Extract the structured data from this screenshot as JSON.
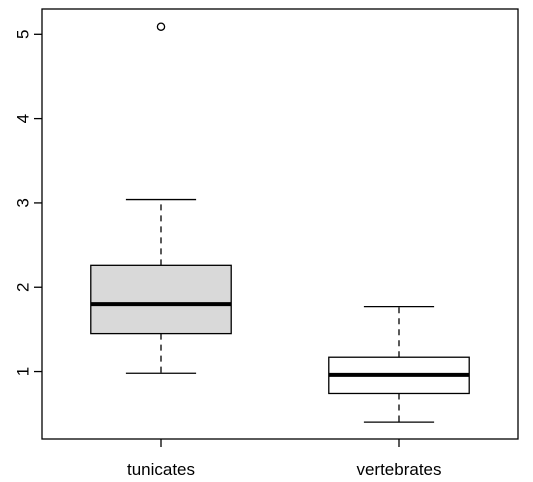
{
  "chart_data": {
    "type": "boxplot",
    "title": "",
    "xlabel": "",
    "ylabel": "",
    "ylim": [
      0.2,
      5.3
    ],
    "yticks": [
      1,
      2,
      3,
      4,
      5
    ],
    "categories": [
      "tunicates",
      "vertebrates"
    ],
    "boxes": [
      {
        "category": "tunicates",
        "whisker_low": 0.98,
        "q1": 1.45,
        "median": 1.8,
        "q3": 2.26,
        "whisker_high": 3.04,
        "outliers": [
          5.09
        ],
        "fill": "#d9d9d9"
      },
      {
        "category": "vertebrates",
        "whisker_low": 0.4,
        "q1": 0.74,
        "median": 0.96,
        "q3": 1.17,
        "whisker_high": 1.77,
        "outliers": [],
        "fill": "#ffffff"
      }
    ],
    "grid": false,
    "legend": "none"
  }
}
